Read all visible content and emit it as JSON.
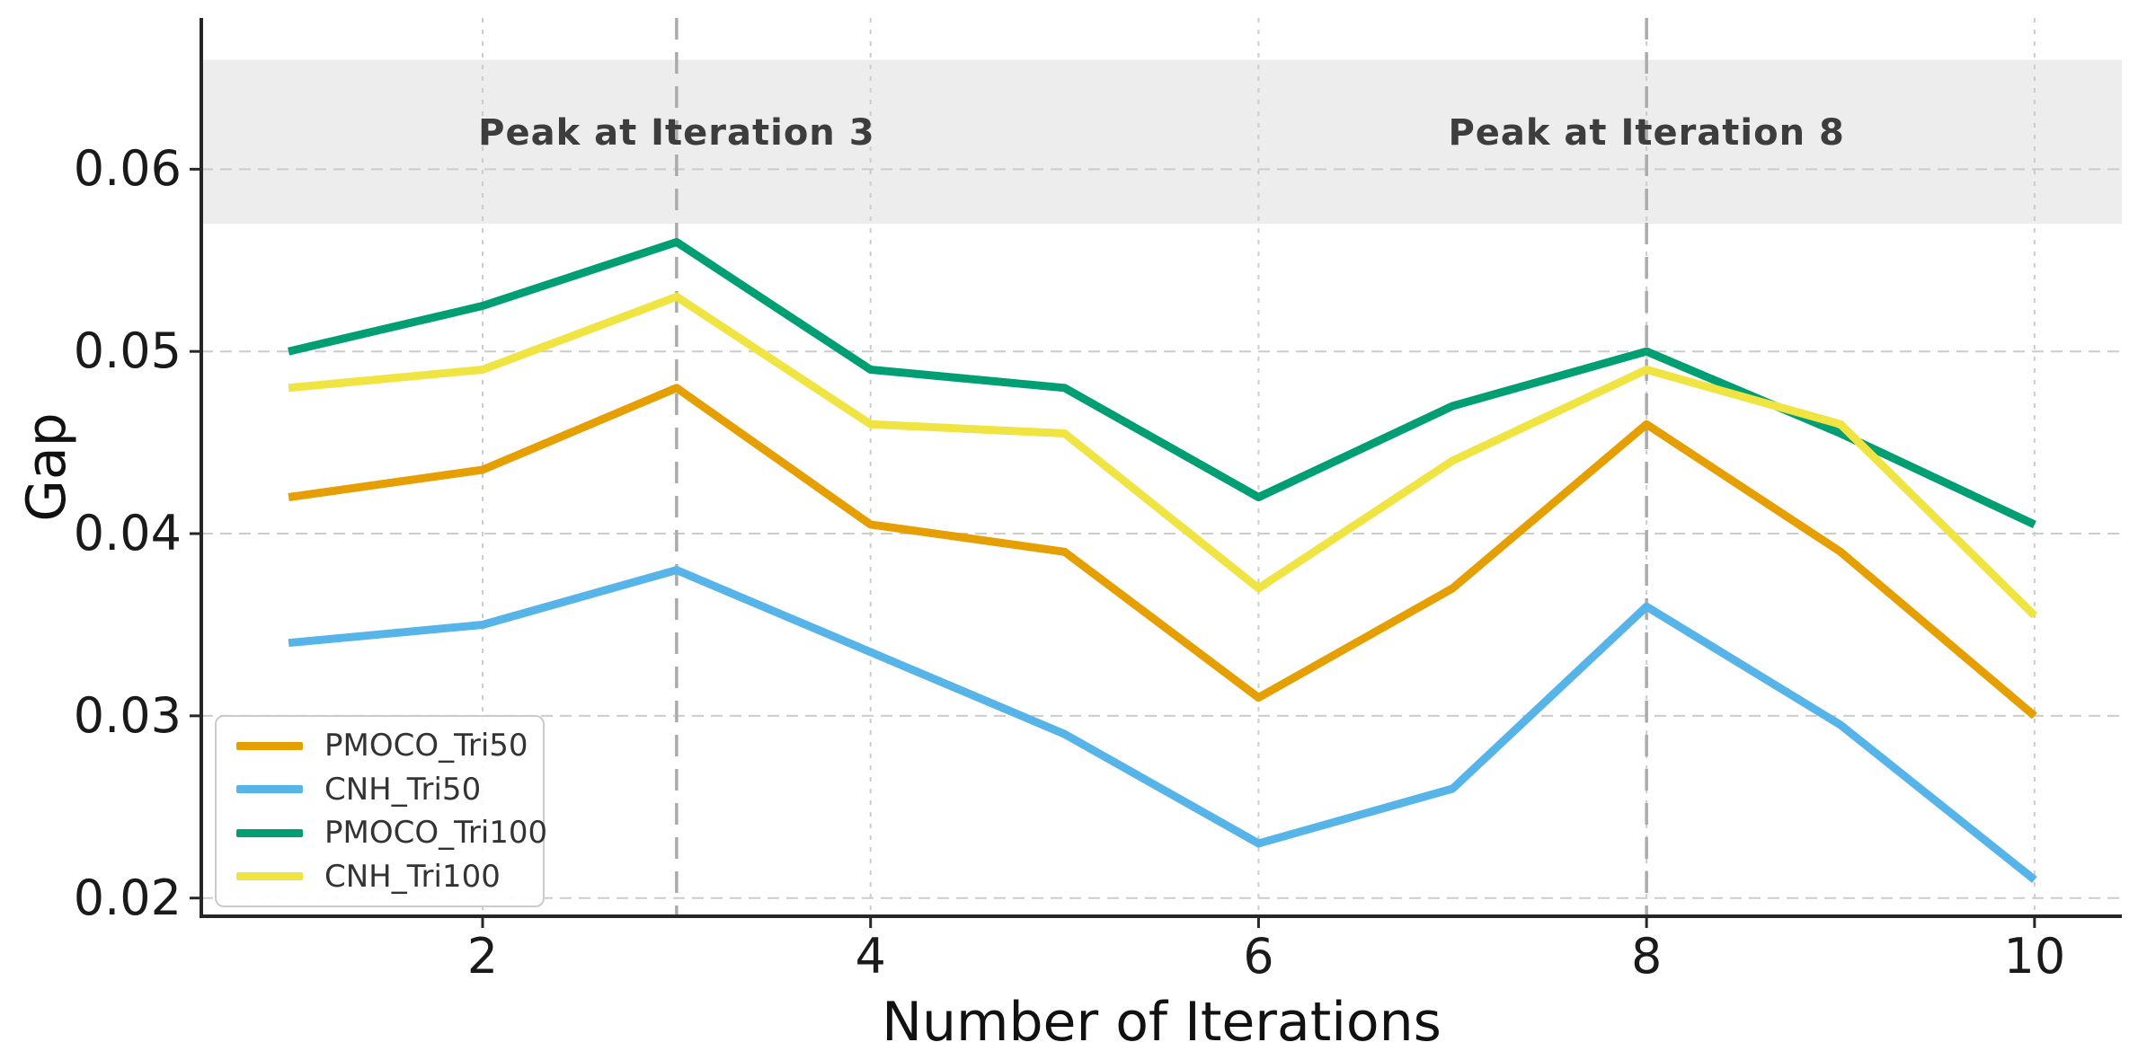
{
  "chart_data": {
    "type": "line",
    "x": [
      1,
      2,
      3,
      4,
      5,
      6,
      7,
      8,
      9,
      10
    ],
    "series": [
      {
        "name": "PMOCO_Tri50",
        "color": "#E69F00",
        "values": [
          0.042,
          0.0435,
          0.048,
          0.0405,
          0.039,
          0.031,
          0.037,
          0.046,
          0.039,
          0.03
        ]
      },
      {
        "name": "CNH_Tri50",
        "color": "#56B4E9",
        "values": [
          0.034,
          0.035,
          0.038,
          0.0335,
          0.029,
          0.023,
          0.026,
          0.036,
          0.0295,
          0.021
        ]
      },
      {
        "name": "PMOCO_Tri100",
        "color": "#009E73",
        "values": [
          0.05,
          0.0525,
          0.056,
          0.049,
          0.048,
          0.042,
          0.047,
          0.05,
          0.0455,
          0.0405
        ]
      },
      {
        "name": "CNH_Tri100",
        "color": "#F0E442",
        "values": [
          0.048,
          0.049,
          0.053,
          0.046,
          0.0455,
          0.037,
          0.044,
          0.049,
          0.046,
          0.0355
        ]
      }
    ],
    "xlabel": "Number of Iterations",
    "ylabel": "Gap",
    "xlim": [
      0.55,
      10.45
    ],
    "ylim": [
      0.019,
      0.0683
    ],
    "xticks": [
      2,
      4,
      6,
      8,
      10
    ],
    "xtick_labels": [
      "2",
      "4",
      "6",
      "8",
      "10"
    ],
    "yticks": [
      0.02,
      0.03,
      0.04,
      0.05,
      0.06
    ],
    "ytick_labels": [
      "0.02",
      "0.03",
      "0.04",
      "0.05",
      "0.06"
    ],
    "grid": true,
    "legend_position": "lower left",
    "band": {
      "ymin": 0.057,
      "ymax": 0.066,
      "color": "#ededed"
    },
    "vlines": [
      {
        "x": 3,
        "label": "Peak at Iteration 3"
      },
      {
        "x": 8,
        "label": "Peak at Iteration 8"
      }
    ],
    "annotation_y": 0.062,
    "colors": {
      "grid": "#cccccc",
      "vline": "#ababab",
      "spine": "#262626",
      "annotation_text": "#3d3d3d"
    }
  }
}
